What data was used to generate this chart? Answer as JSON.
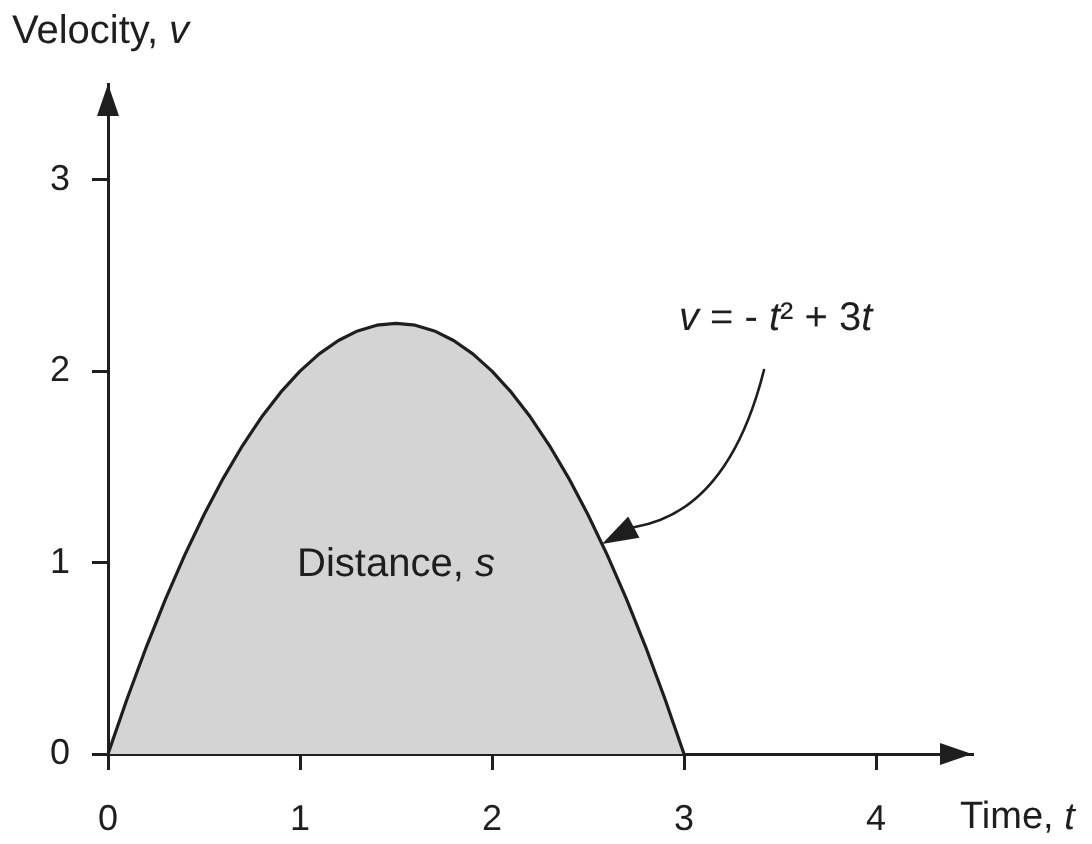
{
  "chart_data": {
    "type": "area",
    "xlabel": "Time, t",
    "ylabel": "Velocity, v",
    "x": [
      0,
      0.1,
      0.2,
      0.3,
      0.4,
      0.5,
      0.6,
      0.7,
      0.8,
      0.9,
      1,
      1.1,
      1.2,
      1.3,
      1.4,
      1.5,
      1.6,
      1.7,
      1.8,
      1.9,
      2,
      2.1,
      2.2,
      2.3,
      2.4,
      2.5,
      2.6,
      2.7,
      2.8,
      2.9,
      3
    ],
    "values": [
      0,
      0.29,
      0.56,
      0.81,
      1.04,
      1.25,
      1.44,
      1.61,
      1.76,
      1.89,
      2,
      2.09,
      2.16,
      2.21,
      2.24,
      2.25,
      2.24,
      2.21,
      2.16,
      2.09,
      2,
      1.89,
      1.76,
      1.61,
      1.44,
      1.25,
      1.04,
      0.81,
      0.56,
      0.29,
      0
    ],
    "color": "#d4d4d4",
    "xlim": [
      0,
      4.5
    ],
    "ylim": [
      0,
      3.5
    ],
    "xticks": [
      0,
      1,
      2,
      3,
      4
    ],
    "yticks": [
      0,
      1,
      2,
      3
    ],
    "annotations": [
      "Distance, s",
      "v = - t² + 3t"
    ],
    "grid": false,
    "legend": false
  }
}
